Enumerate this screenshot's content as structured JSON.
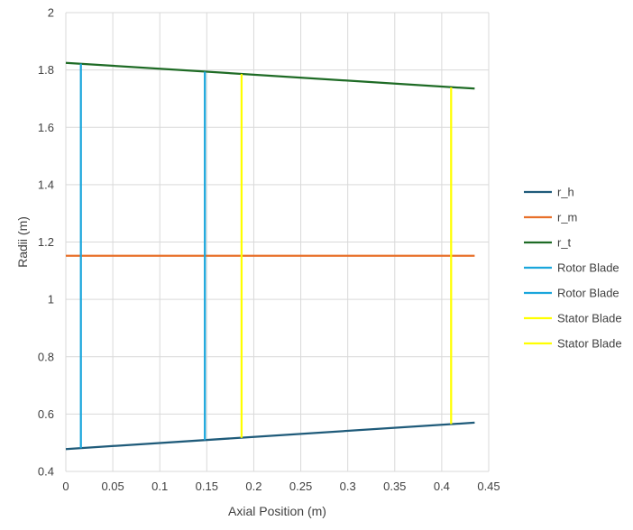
{
  "chart_data": {
    "type": "line",
    "title": "",
    "xlabel": "Axial Position (m)",
    "ylabel": "Radii (m)",
    "xlim": [
      0,
      0.45
    ],
    "ylim": [
      0.4,
      2
    ],
    "x_ticks": [
      "0",
      "0.05",
      "0.1",
      "0.15",
      "0.2",
      "0.25",
      "0.3",
      "0.35",
      "0.4",
      "0.45"
    ],
    "y_ticks": [
      "0.4",
      "0.6",
      "0.8",
      "1",
      "1.2",
      "1.4",
      "1.6",
      "1.8",
      "2"
    ],
    "grid": true,
    "legend_position": "right",
    "series": [
      {
        "name": "r_h",
        "color": "#1f5b7a",
        "x": [
          0,
          0.435
        ],
        "y": [
          0.478,
          0.57
        ]
      },
      {
        "name": "r_m",
        "color": "#e8702a",
        "x": [
          0,
          0.435
        ],
        "y": [
          1.152,
          1.152
        ]
      },
      {
        "name": "r_t",
        "color": "#1e6b25",
        "x": [
          0,
          0.435
        ],
        "y": [
          1.825,
          1.735
        ]
      },
      {
        "name": "Rotor Blade",
        "color": "#1aa6dc",
        "x": [
          0.016,
          0.016
        ],
        "y": [
          0.481,
          1.822
        ]
      },
      {
        "name": "Rotor Blade",
        "color": "#1aa6dc",
        "x": [
          0.148,
          0.148
        ],
        "y": [
          0.509,
          1.794
        ]
      },
      {
        "name": "Stator Blade",
        "color": "#ffff00",
        "x": [
          0.187,
          0.187
        ],
        "y": [
          0.517,
          1.786
        ]
      },
      {
        "name": "Stator Blade",
        "color": "#ffff00",
        "x": [
          0.41,
          0.41
        ],
        "y": [
          0.565,
          1.739
        ]
      }
    ]
  }
}
